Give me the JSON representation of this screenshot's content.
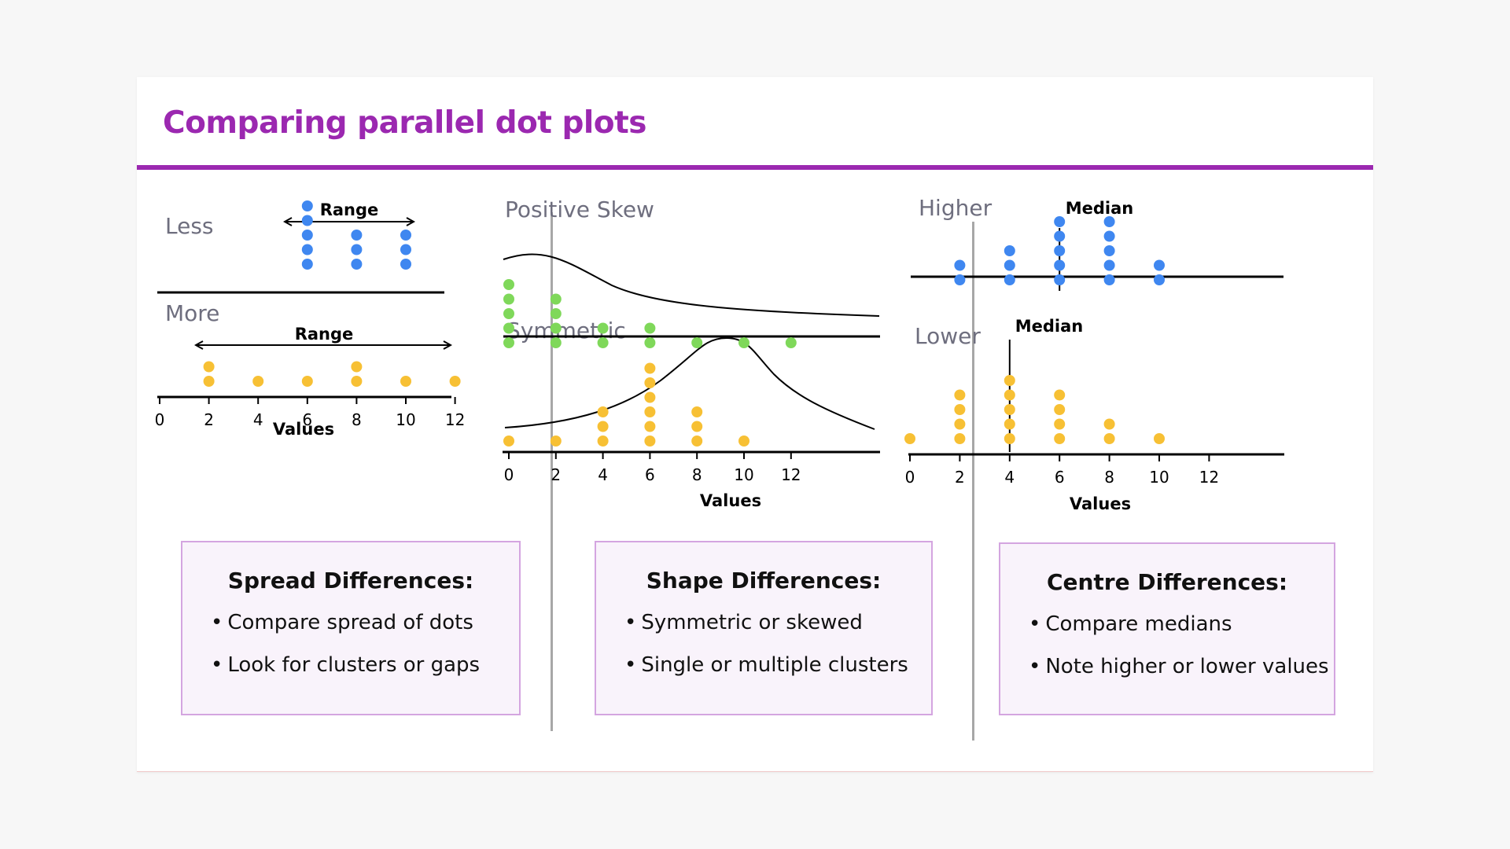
{
  "title": "Comparing parallel dot plots",
  "colors": {
    "accent": "#9b28b0",
    "blue": "#3f87f0",
    "yellow": "#f7c034",
    "green": "#7fd85a",
    "muted": "#6e6e7e"
  },
  "panels": [
    {
      "id": "spread",
      "top_label": "Less",
      "bottom_label": "More",
      "top_annotation": "Range",
      "bottom_annotation": "Range",
      "axis_title": "Values",
      "ticks": [
        "0",
        "2",
        "4",
        "6",
        "8",
        "10",
        "12"
      ],
      "box": {
        "heading": "Spread Differences:",
        "bullets": [
          "Compare spread of dots",
          "Look for clusters or gaps"
        ]
      }
    },
    {
      "id": "shape",
      "top_label": "Positive Skew",
      "bottom_label": "Symmetric",
      "axis_title": "Values",
      "ticks": [
        "0",
        "2",
        "4",
        "6",
        "8",
        "10",
        "12"
      ],
      "box": {
        "heading": "Shape Differences:",
        "bullets": [
          "Symmetric or skewed",
          "Single or multiple clusters"
        ]
      }
    },
    {
      "id": "centre",
      "top_label": "Higher",
      "bottom_label": "Lower",
      "top_annotation": "Median",
      "bottom_annotation": "Median",
      "axis_title": "Values",
      "ticks": [
        "0",
        "2",
        "4",
        "6",
        "8",
        "10",
        "12"
      ],
      "box": {
        "heading": "Centre Differences:",
        "bullets": [
          "Compare medians",
          "Note higher or lower values"
        ]
      }
    }
  ],
  "chart_data": [
    {
      "type": "scatter",
      "xlim": [
        0,
        12
      ],
      "series": [
        {
          "name": "Less",
          "points": [
            [
              6,
              5
            ],
            [
              8,
              3
            ],
            [
              10,
              3
            ]
          ]
        },
        {
          "name": "More",
          "points": [
            [
              2,
              2
            ],
            [
              4,
              1
            ],
            [
              6,
              1
            ],
            [
              8,
              2
            ],
            [
              10,
              1
            ],
            [
              12,
              1
            ]
          ]
        }
      ],
      "annotations": [
        "Range",
        "Range"
      ]
    },
    {
      "type": "scatter",
      "xlim": [
        0,
        12
      ],
      "series": [
        {
          "name": "Positive Skew",
          "points": [
            [
              0,
              5
            ],
            [
              2,
              4
            ],
            [
              4,
              2
            ],
            [
              6,
              2
            ],
            [
              8,
              1
            ],
            [
              10,
              1
            ],
            [
              12,
              1
            ]
          ]
        },
        {
          "name": "Symmetric",
          "points": [
            [
              0,
              1
            ],
            [
              2,
              1
            ],
            [
              4,
              3
            ],
            [
              6,
              6
            ],
            [
              8,
              3
            ],
            [
              10,
              1
            ]
          ]
        }
      ]
    },
    {
      "type": "scatter",
      "xlim": [
        0,
        12
      ],
      "series": [
        {
          "name": "Higher",
          "points": [
            [
              2,
              2
            ],
            [
              4,
              3
            ],
            [
              6,
              5
            ],
            [
              8,
              5
            ],
            [
              10,
              2
            ]
          ],
          "median": 6
        },
        {
          "name": "Lower",
          "points": [
            [
              0,
              1
            ],
            [
              2,
              4
            ],
            [
              4,
              5
            ],
            [
              6,
              4
            ],
            [
              8,
              2
            ],
            [
              10,
              1
            ]
          ],
          "median": 4
        }
      ],
      "annotations": [
        "Median",
        "Median"
      ]
    }
  ]
}
